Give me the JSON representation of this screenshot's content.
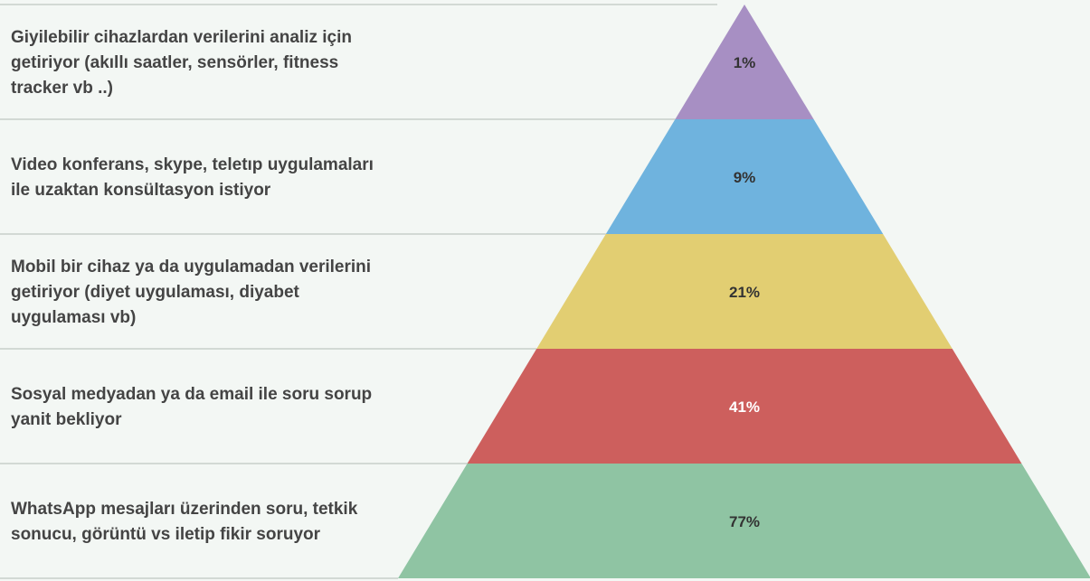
{
  "chart_data": {
    "type": "pyramid",
    "categories": [
      "Giyilebilir cihazlardan verilerini analiz için getiriyor (akıllı saatler, sensörler, fitness tracker vb ..)",
      "Video konferans, skype, teletıp uygulamaları ile uzaktan konsültasyon istiyor",
      "Mobil bir cihaz ya da uygulamadan verilerini getiriyor (diyet uygulaması, diyabet uygulaması vb)",
      "Sosyal medyadan ya da email ile soru sorup yanit bekliyor",
      "WhatsApp mesajları üzerinden soru, tetkik sonucu, görüntü vs iletip fikir soruyor"
    ],
    "values": [
      1,
      9,
      21,
      41,
      77
    ],
    "value_labels": [
      "1%",
      "9%",
      "21%",
      "41%",
      "77%"
    ],
    "colors": [
      "#a78fc3",
      "#6fb3de",
      "#e2ce72",
      "#cd5f5d",
      "#8fc4a3"
    ],
    "label_colors": [
      "#333333",
      "#333333",
      "#333333",
      "#ffffff",
      "#333333"
    ]
  }
}
